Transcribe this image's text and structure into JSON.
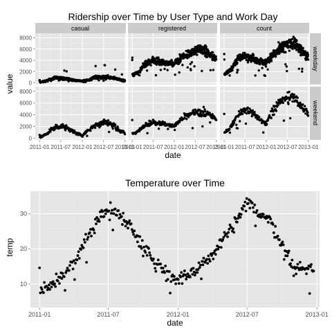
{
  "colors": {
    "panel_background": "#e5e5e5",
    "grid_major": "#ffffff",
    "grid_minor": "#f0f0f0",
    "strip_background": "#cccccc",
    "point": "#000000",
    "text": "#000000",
    "tick_text": "#4d4d4d"
  },
  "chart_data": [
    {
      "type": "scatter",
      "title": "Ridership over Time by User Type and Work Day",
      "xlabel": "date",
      "ylabel": "value",
      "facet_columns": [
        "casual",
        "registered",
        "count"
      ],
      "facet_rows": [
        "weekday",
        "weekend"
      ],
      "x_ticks": [
        "2011-01",
        "2011-07",
        "2012-01",
        "2012-07",
        "2013-01"
      ],
      "y_ticks": [
        0,
        2000,
        4000,
        6000,
        8000
      ],
      "ylim": [
        -300,
        8800
      ],
      "xlim": [
        "2010-11-25",
        "2013-01-08"
      ],
      "grid": true,
      "note": "facets: columns by series, rows by day type; y values in riders per day",
      "anchors": {
        "weekday": {
          "casual": [
            [
              "2011-01-03",
              120
            ],
            [
              "2011-03-01",
              350
            ],
            [
              "2011-05-01",
              900
            ],
            [
              "2011-07-01",
              800
            ],
            [
              "2011-09-01",
              650
            ],
            [
              "2011-11-01",
              400
            ],
            [
              "2012-01-01",
              280
            ],
            [
              "2012-03-01",
              550
            ],
            [
              "2012-05-01",
              1050
            ],
            [
              "2012-07-01",
              1050
            ],
            [
              "2012-09-01",
              1000
            ],
            [
              "2012-11-01",
              650
            ],
            [
              "2012-12-31",
              380
            ]
          ],
          "registered": [
            [
              "2011-01-03",
              1450
            ],
            [
              "2011-03-01",
              1950
            ],
            [
              "2011-05-01",
              3550
            ],
            [
              "2011-07-01",
              3950
            ],
            [
              "2011-09-01",
              3700
            ],
            [
              "2011-11-01",
              3500
            ],
            [
              "2012-01-01",
              3300
            ],
            [
              "2012-03-01",
              4400
            ],
            [
              "2012-05-01",
              5200
            ],
            [
              "2012-07-01",
              5600
            ],
            [
              "2012-09-01",
              6100
            ],
            [
              "2012-11-01",
              5100
            ],
            [
              "2012-12-31",
              4300
            ]
          ],
          "count": [
            [
              "2011-01-03",
              1550
            ],
            [
              "2011-03-01",
              2300
            ],
            [
              "2011-05-01",
              4500
            ],
            [
              "2011-07-01",
              4800
            ],
            [
              "2011-09-01",
              4400
            ],
            [
              "2011-11-01",
              3900
            ],
            [
              "2012-01-01",
              3600
            ],
            [
              "2012-03-01",
              4950
            ],
            [
              "2012-05-01",
              6250
            ],
            [
              "2012-07-01",
              6700
            ],
            [
              "2012-09-01",
              7100
            ],
            [
              "2012-11-01",
              5800
            ],
            [
              "2012-12-31",
              4700
            ]
          ]
        },
        "weekend": {
          "casual": [
            [
              "2011-01-03",
              150
            ],
            [
              "2011-03-01",
              700
            ],
            [
              "2011-05-01",
              1750
            ],
            [
              "2011-07-01",
              2100
            ],
            [
              "2011-09-01",
              1700
            ],
            [
              "2011-11-01",
              900
            ],
            [
              "2012-01-01",
              450
            ],
            [
              "2012-03-01",
              1500
            ],
            [
              "2012-05-01",
              2450
            ],
            [
              "2012-07-01",
              2650
            ],
            [
              "2012-09-01",
              2550
            ],
            [
              "2012-11-01",
              1550
            ],
            [
              "2012-12-31",
              800
            ]
          ],
          "registered": [
            [
              "2011-01-03",
              750
            ],
            [
              "2011-03-01",
              1250
            ],
            [
              "2011-05-01",
              2400
            ],
            [
              "2011-07-01",
              2650
            ],
            [
              "2011-09-01",
              2600
            ],
            [
              "2011-11-01",
              2300
            ],
            [
              "2012-01-01",
              2100
            ],
            [
              "2012-03-01",
              3150
            ],
            [
              "2012-05-01",
              3950
            ],
            [
              "2012-07-01",
              4200
            ],
            [
              "2012-09-01",
              4500
            ],
            [
              "2012-11-01",
              3950
            ],
            [
              "2012-12-31",
              3300
            ]
          ],
          "count": [
            [
              "2011-01-03",
              900
            ],
            [
              "2011-03-01",
              1950
            ],
            [
              "2011-05-01",
              4150
            ],
            [
              "2011-07-01",
              4750
            ],
            [
              "2011-09-01",
              4300
            ],
            [
              "2011-11-01",
              3200
            ],
            [
              "2012-01-01",
              2550
            ],
            [
              "2012-03-01",
              4650
            ],
            [
              "2012-05-01",
              6400
            ],
            [
              "2012-07-01",
              6850
            ],
            [
              "2012-09-01",
              7050
            ],
            [
              "2012-11-01",
              5500
            ],
            [
              "2012-12-31",
              4100
            ]
          ]
        }
      }
    },
    {
      "type": "scatter",
      "title": "Temperature over Time",
      "xlabel": "date",
      "ylabel": "temp",
      "x_ticks": [
        "2011-01",
        "2011-07",
        "2012-01",
        "2012-07",
        "2013-01"
      ],
      "y_ticks": [
        10,
        20,
        30
      ],
      "ylim": [
        3.3,
        36.4
      ],
      "xlim": [
        "2010-12-08",
        "2013-01-08"
      ],
      "grid": true,
      "anchors": [
        [
          "2011-01-03",
          8.5
        ],
        [
          "2011-02-01",
          9.5
        ],
        [
          "2011-03-01",
          12.5
        ],
        [
          "2011-04-01",
          15.5
        ],
        [
          "2011-05-01",
          21.5
        ],
        [
          "2011-06-01",
          28.5
        ],
        [
          "2011-07-01",
          31.0
        ],
        [
          "2011-08-01",
          30.0
        ],
        [
          "2011-09-01",
          26.0
        ],
        [
          "2011-10-01",
          21.0
        ],
        [
          "2011-11-01",
          16.0
        ],
        [
          "2011-12-01",
          13.5
        ],
        [
          "2012-01-01",
          11.0
        ],
        [
          "2012-02-01",
          12.0
        ],
        [
          "2012-03-01",
          16.0
        ],
        [
          "2012-04-01",
          18.0
        ],
        [
          "2012-05-01",
          23.0
        ],
        [
          "2012-06-01",
          27.0
        ],
        [
          "2012-07-01",
          33.0
        ],
        [
          "2012-08-01",
          30.5
        ],
        [
          "2012-09-01",
          28.0
        ],
        [
          "2012-10-01",
          21.0
        ],
        [
          "2012-11-01",
          14.5
        ],
        [
          "2012-12-01",
          14.5
        ],
        [
          "2012-12-31",
          13.5
        ]
      ]
    }
  ]
}
